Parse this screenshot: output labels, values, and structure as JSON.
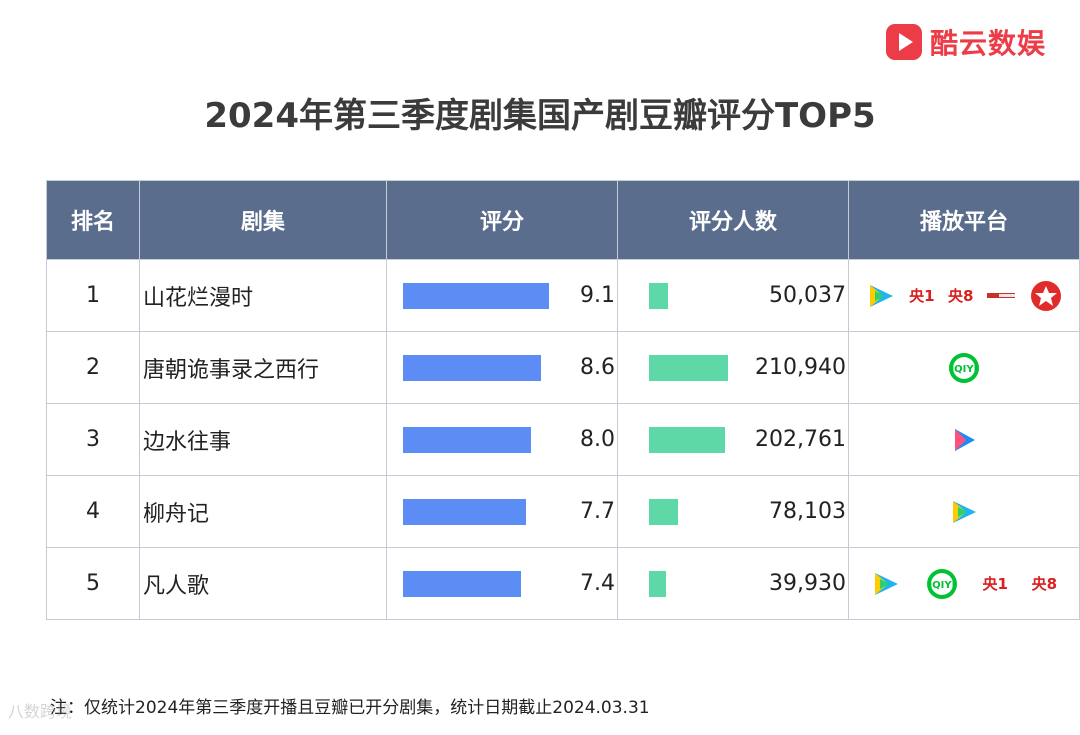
{
  "brand": {
    "logo_text": "酷云数娱"
  },
  "title": "2024年第三季度剧集国产剧豆瓣评分TOP5",
  "table": {
    "headers": [
      "排名",
      "剧集",
      "评分",
      "评分人数",
      "播放平台"
    ],
    "rows": [
      {
        "rank": "1",
        "name": "山花烂漫时",
        "score": 9.1,
        "score_text": "9.1",
        "count": 50037,
        "count_text": "50,037",
        "platforms": [
          "tencent-video",
          "cctv1",
          "cctv8",
          "cctv-other",
          "dragon-tv"
        ]
      },
      {
        "rank": "2",
        "name": "唐朝诡事录之西行",
        "score": 8.6,
        "score_text": "8.6",
        "count": 210940,
        "count_text": "210,940",
        "platforms": [
          "iqiyi"
        ]
      },
      {
        "rank": "3",
        "name": "边水往事",
        "score": 8.0,
        "score_text": "8.0",
        "count": 202761,
        "count_text": "202,761",
        "platforms": [
          "youku"
        ]
      },
      {
        "rank": "4",
        "name": "柳舟记",
        "score": 7.7,
        "score_text": "7.7",
        "count": 78103,
        "count_text": "78,103",
        "platforms": [
          "tencent-video"
        ]
      },
      {
        "rank": "5",
        "name": "凡人歌",
        "score": 7.4,
        "score_text": "7.4",
        "count": 39930,
        "count_text": "39,930",
        "platforms": [
          "tencent-video",
          "iqiyi",
          "cctv1",
          "cctv8"
        ]
      }
    ],
    "platform_labels": {
      "cctv1": "央1",
      "cctv8": "央8",
      "iqiyi": "iQIYI"
    }
  },
  "chart_data": {
    "type": "table",
    "columns": [
      "排名",
      "剧集",
      "评分",
      "评分人数",
      "播放平台"
    ],
    "categories": [
      "山花烂漫时",
      "唐朝诡事录之西行",
      "边水往事",
      "柳舟记",
      "凡人歌"
    ],
    "series": [
      {
        "name": "评分",
        "values": [
          9.1,
          8.6,
          8.0,
          7.7,
          7.4
        ]
      },
      {
        "name": "评分人数",
        "values": [
          50037,
          210940,
          202761,
          78103,
          39930
        ]
      }
    ]
  },
  "footnote": "注：仅统计2024年第三季度开播且豆瓣已开分剧集，统计日期截止2024.03.31",
  "watermark": "八数跨境",
  "colors": {
    "header_bg": "#5a6d8c",
    "score_bar": "#5b8df5",
    "count_bar": "#5fd8a8",
    "brand": "#ec3c47"
  }
}
